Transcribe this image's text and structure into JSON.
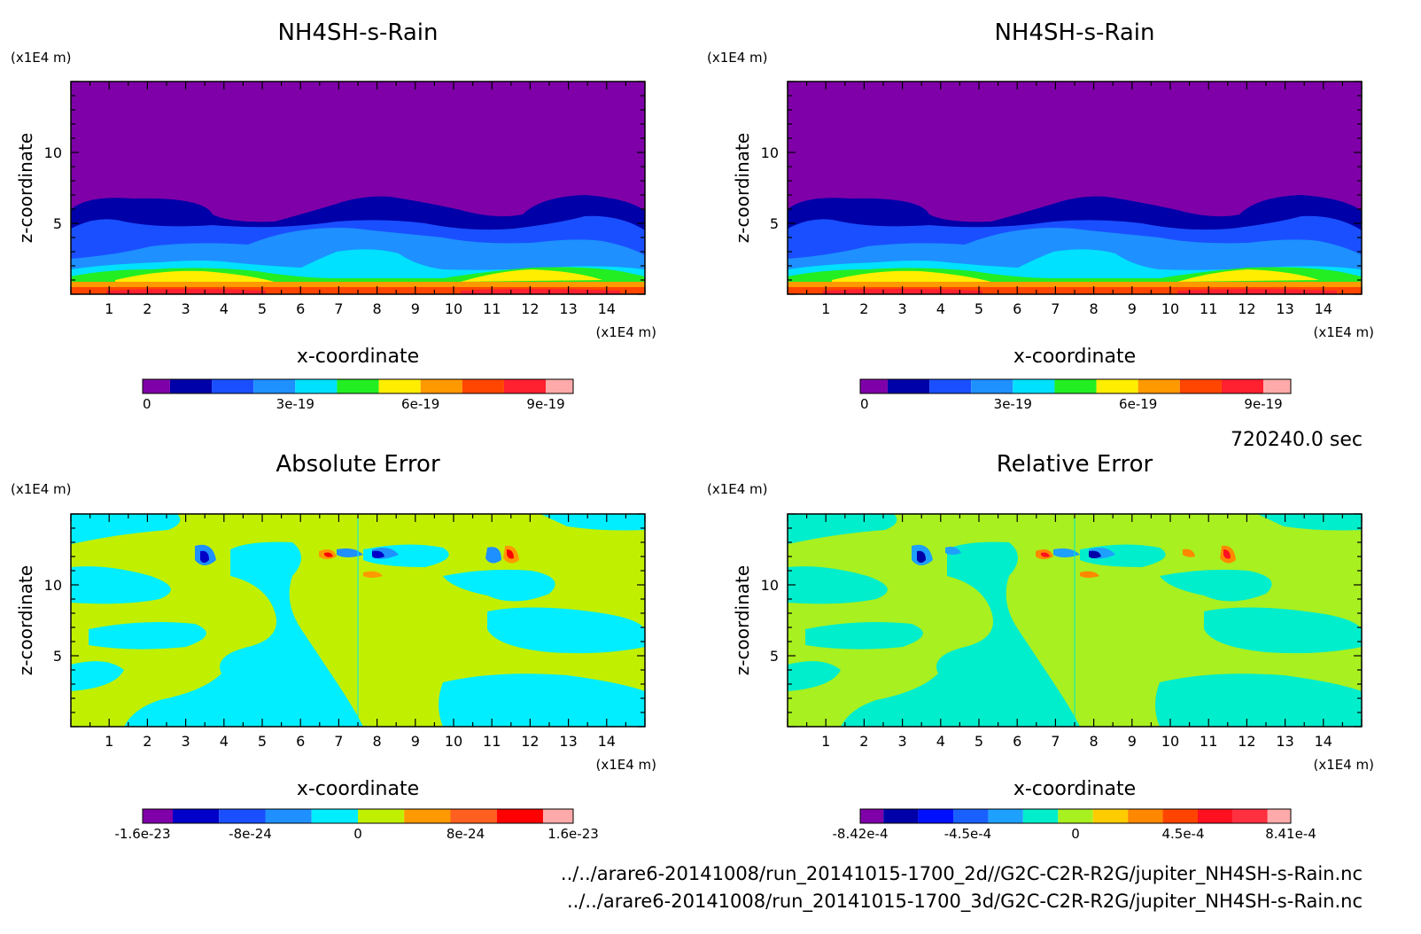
{
  "time_label": "720240.0 sec",
  "file_paths": [
    "../../arare6-20141008/run_20141015-1700_2d//G2C-C2R-R2G/jupiter_NH4SH-s-Rain.nc",
    "../../arare6-20141008/run_20141015-1700_3d/G2C-C2R-R2G/jupiter_NH4SH-s-Rain.nc"
  ],
  "chart_data": [
    {
      "type": "heatmap",
      "title": "NH4SH-s-Rain",
      "xlabel": "x-coordinate",
      "ylabel": "z-coordinate",
      "x_unit": "(x1E4 m)",
      "y_unit": "(x1E4 m)",
      "xlim": [
        0,
        15
      ],
      "ylim": [
        0,
        15
      ],
      "x_ticks": [
        "1",
        "2",
        "3",
        "4",
        "5",
        "6",
        "7",
        "8",
        "9",
        "10",
        "11",
        "12",
        "13",
        "14"
      ],
      "y_ticks": [
        "5",
        "10"
      ],
      "colorbar_colors": [
        "#7F00A8",
        "#0000A8",
        "#1A4FFF",
        "#1E90FF",
        "#00E0FF",
        "#22EE22",
        "#FFEE00",
        "#FF9900",
        "#FF4500",
        "#FF2030",
        "#FFAAAA"
      ],
      "colorbar_labels": [
        "0",
        "3e-19",
        "6e-19",
        "9e-19"
      ]
    },
    {
      "type": "heatmap",
      "title": "NH4SH-s-Rain",
      "xlabel": "x-coordinate",
      "ylabel": "z-coordinate",
      "x_unit": "(x1E4 m)",
      "y_unit": "(x1E4 m)",
      "xlim": [
        0,
        15
      ],
      "ylim": [
        0,
        15
      ],
      "x_ticks": [
        "1",
        "2",
        "3",
        "4",
        "5",
        "6",
        "7",
        "8",
        "9",
        "10",
        "11",
        "12",
        "13",
        "14"
      ],
      "y_ticks": [
        "5",
        "10"
      ],
      "colorbar_colors": [
        "#7F00A8",
        "#0000A8",
        "#1A4FFF",
        "#1E90FF",
        "#00E0FF",
        "#22EE22",
        "#FFEE00",
        "#FF9900",
        "#FF4500",
        "#FF2030",
        "#FFAAAA"
      ],
      "colorbar_labels": [
        "0",
        "3e-19",
        "6e-19",
        "9e-19"
      ]
    },
    {
      "type": "heatmap",
      "title": "Absolute Error",
      "xlabel": "x-coordinate",
      "ylabel": "z-coordinate",
      "x_unit": "(x1E4 m)",
      "y_unit": "(x1E4 m)",
      "xlim": [
        0,
        15
      ],
      "ylim": [
        0,
        15
      ],
      "x_ticks": [
        "1",
        "2",
        "3",
        "4",
        "5",
        "6",
        "7",
        "8",
        "9",
        "10",
        "11",
        "12",
        "13",
        "14"
      ],
      "y_ticks": [
        "5",
        "10"
      ],
      "colorbar_colors": [
        "#7F00A8",
        "#0000C8",
        "#1A4FFF",
        "#1E90FF",
        "#00EEFF",
        "#C0F000",
        "#FF9900",
        "#FF6020",
        "#FF0000",
        "#FFAAAA"
      ],
      "colorbar_labels": [
        "-1.6e-23",
        "-8e-24",
        "0",
        "8e-24",
        "1.6e-23"
      ]
    },
    {
      "type": "heatmap",
      "title": "Relative Error",
      "xlabel": "x-coordinate",
      "ylabel": "z-coordinate",
      "x_unit": "(x1E4 m)",
      "y_unit": "(x1E4 m)",
      "xlim": [
        0,
        15
      ],
      "ylim": [
        0,
        15
      ],
      "x_ticks": [
        "1",
        "2",
        "3",
        "4",
        "5",
        "6",
        "7",
        "8",
        "9",
        "10",
        "11",
        "12",
        "13",
        "14"
      ],
      "y_ticks": [
        "5",
        "10"
      ],
      "colorbar_colors": [
        "#7F00A8",
        "#0000A8",
        "#0010FF",
        "#1A60FF",
        "#1EA0FF",
        "#00EECC",
        "#A8F020",
        "#FFCC00",
        "#FF8800",
        "#FF4400",
        "#FF1020",
        "#FF3040",
        "#FFAAAA"
      ],
      "colorbar_labels": [
        "-8.42e-4",
        "-4.5e-4",
        "0",
        "4.5e-4",
        "8.41e-4"
      ]
    }
  ]
}
